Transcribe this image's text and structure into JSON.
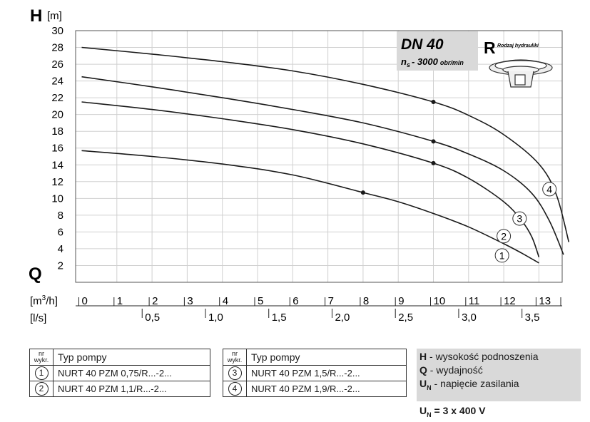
{
  "chart_data": {
    "type": "line",
    "y_axis_letter": "H",
    "y_axis_unit": "[m]",
    "x_axis_letter": "Q",
    "x_unit_primary": "[m3/h]",
    "x_unit_secondary": "[l/s]",
    "ylim": [
      0,
      30
    ],
    "xlim": [
      0,
      13.85
    ],
    "y_ticks": [
      2,
      4,
      6,
      8,
      10,
      12,
      14,
      16,
      18,
      20,
      22,
      24,
      26,
      28,
      30
    ],
    "x_ticks_m3h": [
      0,
      1,
      2,
      3,
      4,
      5,
      6,
      7,
      8,
      9,
      10,
      11,
      12,
      13
    ],
    "x_ticks_ls": [
      {
        "label": "0,5",
        "q": 1.8
      },
      {
        "label": "1,0",
        "q": 3.6
      },
      {
        "label": "1,5",
        "q": 5.4
      },
      {
        "label": "2,0",
        "q": 7.2
      },
      {
        "label": "2,5",
        "q": 9.0
      },
      {
        "label": "3,0",
        "q": 10.8
      },
      {
        "label": "3,5",
        "q": 12.6
      }
    ],
    "grid": true,
    "series": [
      {
        "name": "1",
        "x": [
          0,
          2,
          4,
          6,
          8,
          9,
          10,
          11,
          12,
          12.5,
          13
        ],
        "y": [
          15.7,
          15.0,
          14.1,
          12.8,
          10.7,
          9.6,
          8.2,
          6.6,
          4.6,
          3.5,
          2.3
        ],
        "marker": [
          8,
          10.7
        ],
        "label_at": [
          11.95,
          3.2
        ]
      },
      {
        "name": "2",
        "x": [
          0,
          2,
          4,
          6,
          8,
          10,
          11,
          12,
          12.5,
          12.8,
          13
        ],
        "y": [
          21.5,
          20.6,
          19.5,
          18.2,
          16.5,
          14.2,
          12.4,
          9.6,
          7.4,
          5.4,
          3.0
        ],
        "marker": [
          10.0,
          14.2
        ],
        "label_at": [
          12.0,
          5.5
        ]
      },
      {
        "name": "3",
        "x": [
          0,
          2,
          4,
          6,
          8,
          10,
          11,
          12,
          12.8,
          13.3,
          13.7
        ],
        "y": [
          24.5,
          23.3,
          22.0,
          20.6,
          19.0,
          16.8,
          15.3,
          13.3,
          10.6,
          7.3,
          3.3
        ],
        "marker": [
          10.0,
          16.8
        ],
        "label_at": [
          12.45,
          7.6
        ]
      },
      {
        "name": "4",
        "x": [
          0,
          2,
          4,
          6,
          8,
          10,
          11,
          12,
          13,
          13.5,
          13.85
        ],
        "y": [
          28.0,
          27.2,
          26.3,
          25.2,
          23.6,
          21.5,
          19.9,
          17.6,
          14.1,
          10.4,
          4.8
        ],
        "marker": [
          10.0,
          21.5
        ],
        "label_at": [
          13.3,
          11.1
        ]
      }
    ],
    "info_box": {
      "dn": "DN 40",
      "ns_symbol": "n",
      "ns_sub": "s",
      "ns_value": "- 3000",
      "ns_unit": "obr/min"
    },
    "hydraulics": {
      "letter": "R",
      "caption": "Rodzaj hydrauliki"
    }
  },
  "table_left": {
    "header_nr": [
      "nr",
      "wykr."
    ],
    "header_typ": "Typ pompy",
    "rows": [
      {
        "nr": "1",
        "model": "NURT 40 PZM 0,75/R...-2..."
      },
      {
        "nr": "2",
        "model": "NURT 40 PZM 1,1/R...-2..."
      }
    ]
  },
  "table_right": {
    "header_nr": [
      "nr",
      "wykr."
    ],
    "header_typ": "Typ pompy",
    "rows": [
      {
        "nr": "3",
        "model": "NURT 40 PZM 1,5/R...-2..."
      },
      {
        "nr": "4",
        "model": "NURT 40 PZM 1,9/R...-2..."
      }
    ]
  },
  "legend": {
    "h_key": "H",
    "h_text": "- wysokość podnoszenia",
    "q_key": "Q",
    "q_text": "- wydajność",
    "u_key": "U",
    "u_sub": "N",
    "u_text": "- napięcie zasilania",
    "voltage_key": "U",
    "voltage_sub": "N",
    "voltage_value": "= 3 x 400 V"
  },
  "colors": {
    "curve": "#1a1a1a",
    "grid": "#d0d0d0",
    "info_bg": "#d9d9d9",
    "frame": "#555555"
  }
}
